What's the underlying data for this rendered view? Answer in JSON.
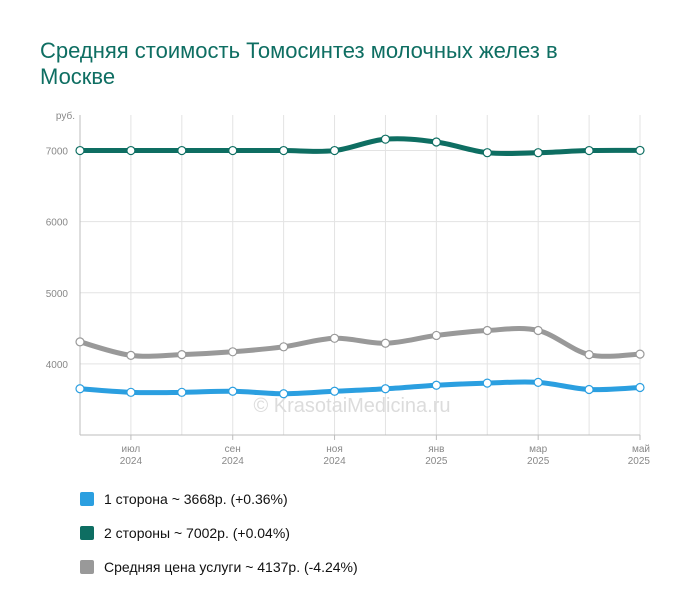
{
  "title": "Средняя стоимость Томосинтез молочных желез в Москве",
  "watermark": "© KrasotaiMedicina.ru",
  "chart_data": {
    "type": "line",
    "y_unit_label": "руб.",
    "ylim": [
      3000,
      7500
    ],
    "yticks": [
      4000,
      5000,
      6000,
      7000
    ],
    "x": [
      "2024-06",
      "2024-07",
      "2024-08",
      "2024-09",
      "2024-10",
      "2024-11",
      "2024-12",
      "2025-01",
      "2025-02",
      "2025-03",
      "2025-04",
      "2025-05"
    ],
    "xtick_labels": [
      {
        "month": "июл",
        "year": "2024",
        "index": 1
      },
      {
        "month": "сен",
        "year": "2024",
        "index": 3
      },
      {
        "month": "ноя",
        "year": "2024",
        "index": 5
      },
      {
        "month": "янв",
        "year": "2025",
        "index": 7
      },
      {
        "month": "мар",
        "year": "2025",
        "index": 9
      },
      {
        "month": "май",
        "year": "2025",
        "index": 11
      }
    ],
    "grid": true,
    "series": [
      {
        "name": "1 сторона",
        "color": "#2b9fe0",
        "values": [
          3650,
          3600,
          3600,
          3615,
          3580,
          3615,
          3650,
          3700,
          3730,
          3740,
          3640,
          3668
        ]
      },
      {
        "name": "2 стороны",
        "color": "#0e6e62",
        "values": [
          7000,
          7000,
          7000,
          7000,
          7000,
          7000,
          7160,
          7120,
          6970,
          6970,
          7000,
          7002
        ]
      },
      {
        "name": "Средняя цена услуги",
        "color": "#999999",
        "values": [
          4310,
          4120,
          4130,
          4170,
          4240,
          4360,
          4290,
          4400,
          4470,
          4470,
          4130,
          4137
        ]
      }
    ]
  },
  "legend": [
    {
      "label": "1 сторона ~ 3668р. (+0.36%)",
      "color": "#2b9fe0"
    },
    {
      "label": "2 стороны ~ 7002р. (+0.04%)",
      "color": "#0e6e62"
    },
    {
      "label": "Средняя цена услуги ~ 4137р. (-4.24%)",
      "color": "#999999"
    }
  ]
}
